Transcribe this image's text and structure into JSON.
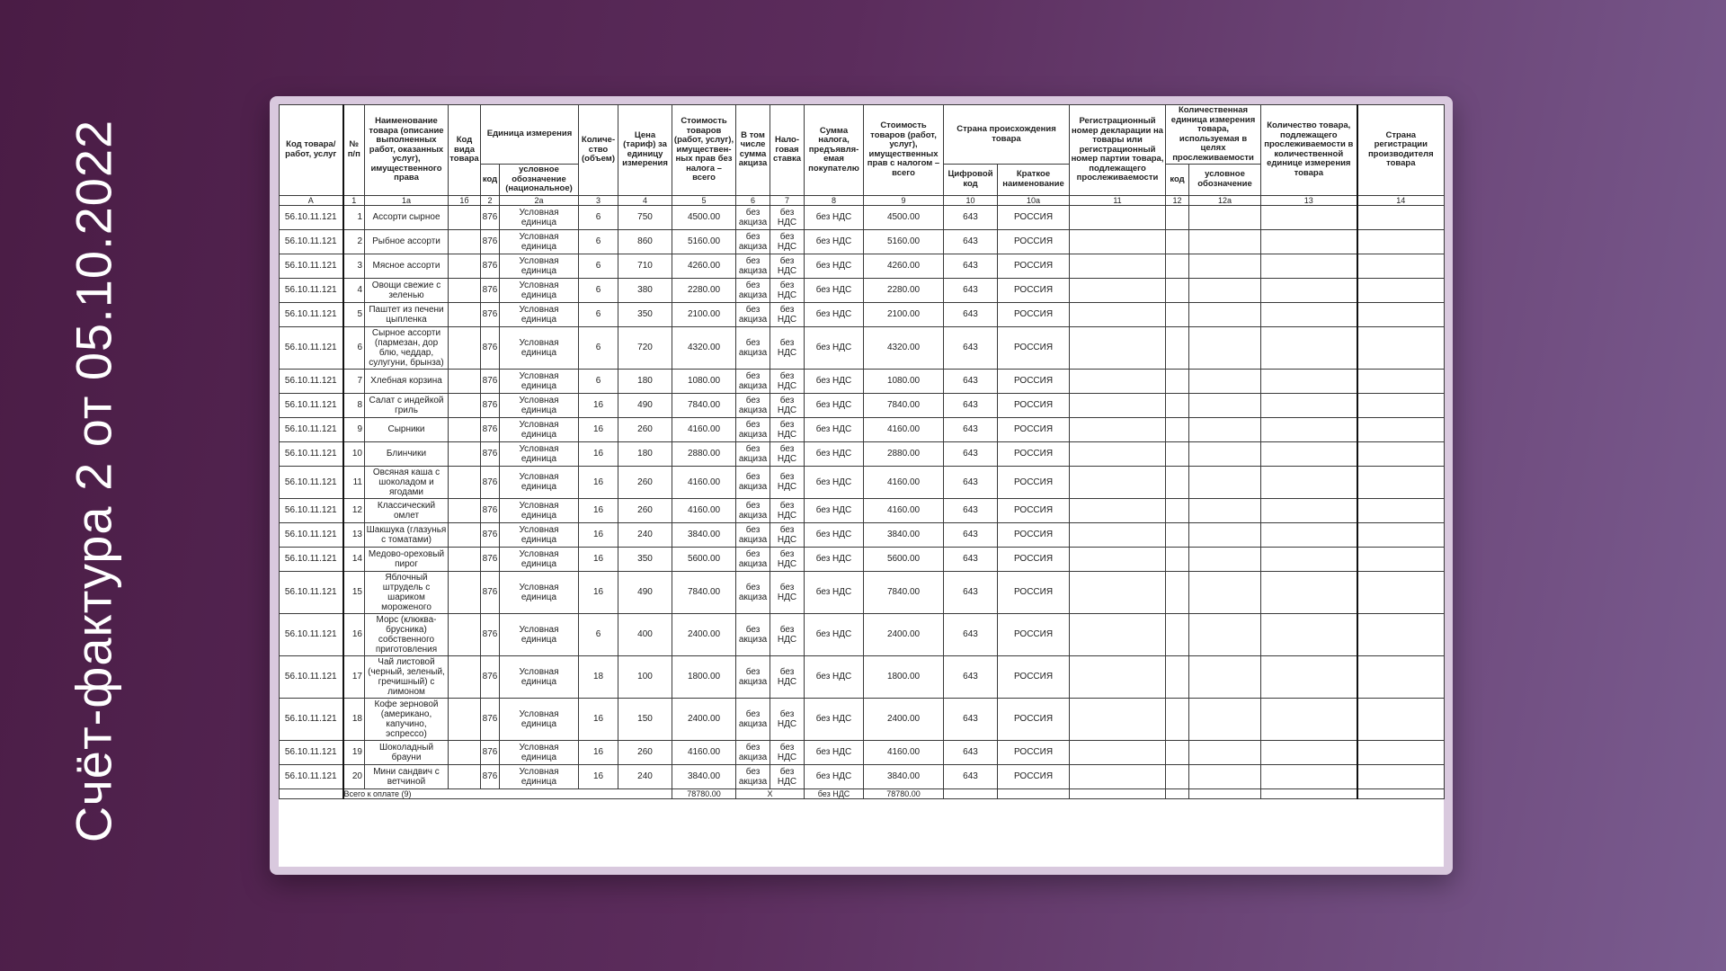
{
  "title": "Счёт-фактура 2 от 05.10.2022",
  "table": {
    "header": [
      "Код товара/ работ, услуг",
      "№ п/п",
      "Наименование товара (описание выполненных работ, оказанных услуг), имущественного права",
      "Код вида товара",
      "Единица измерения",
      "Количе-ство (объем)",
      "Цена (тариф) за единицу измерения",
      "Стоимость товаров (работ, услуг), имуществен-ных прав без налога – всего",
      "В том числе сумма акциза",
      "Нало-говая ставка",
      "Сумма налога, предъявля-емая покупателю",
      "Стоимость товаров (работ, услуг), имущественных прав с налогом – всего",
      "Страна происхождения товара",
      "Регистрационный номер декларации на товары или регистрационный номер партии товара, подлежащего прослеживаемости",
      "Количественная единица измерения товара, используемая в целях прослеживаемости",
      "Количество товара, подлежащего прослеживаемости в количественной единице измерения товара",
      "Страна регистрации производителя товара"
    ],
    "subheader": [
      "код",
      "условное обозначение (национальное)",
      "Цифровой код",
      "Краткое наименование",
      "код",
      "условное обозначение"
    ],
    "column_numbers": [
      "А",
      "1",
      "1а",
      "1б",
      "2",
      "2а",
      "3",
      "4",
      "5",
      "6",
      "7",
      "8",
      "9",
      "10",
      "10а",
      "11",
      "12",
      "12а",
      "13",
      "14"
    ],
    "rows": [
      {
        "code": "56.10.11.121",
        "n": "1",
        "name": "Ассорти сырное",
        "unit_code": "876",
        "unit": "Условная единица",
        "qty": "6",
        "price": "750",
        "cost": "4500.00",
        "excise": "без акциза",
        "rate": "без НДС",
        "tax": "без НДС",
        "total": "4500.00",
        "country_code": "643",
        "country": "РОССИЯ"
      },
      {
        "code": "56.10.11.121",
        "n": "2",
        "name": "Рыбное ассорти",
        "unit_code": "876",
        "unit": "Условная единица",
        "qty": "6",
        "price": "860",
        "cost": "5160.00",
        "excise": "без акциза",
        "rate": "без НДС",
        "tax": "без НДС",
        "total": "5160.00",
        "country_code": "643",
        "country": "РОССИЯ"
      },
      {
        "code": "56.10.11.121",
        "n": "3",
        "name": "Мясное ассорти",
        "unit_code": "876",
        "unit": "Условная единица",
        "qty": "6",
        "price": "710",
        "cost": "4260.00",
        "excise": "без акциза",
        "rate": "без НДС",
        "tax": "без НДС",
        "total": "4260.00",
        "country_code": "643",
        "country": "РОССИЯ"
      },
      {
        "code": "56.10.11.121",
        "n": "4",
        "name": "Овощи свежие с зеленью",
        "unit_code": "876",
        "unit": "Условная единица",
        "qty": "6",
        "price": "380",
        "cost": "2280.00",
        "excise": "без акциза",
        "rate": "без НДС",
        "tax": "без НДС",
        "total": "2280.00",
        "country_code": "643",
        "country": "РОССИЯ"
      },
      {
        "code": "56.10.11.121",
        "n": "5",
        "name": "Паштет из печени цыпленка",
        "unit_code": "876",
        "unit": "Условная единица",
        "qty": "6",
        "price": "350",
        "cost": "2100.00",
        "excise": "без акциза",
        "rate": "без НДС",
        "tax": "без НДС",
        "total": "2100.00",
        "country_code": "643",
        "country": "РОССИЯ"
      },
      {
        "code": "56.10.11.121",
        "n": "6",
        "name": "Сырное ассорти (пармезан, дор блю, чеддар, сулугуни, брынза)",
        "unit_code": "876",
        "unit": "Условная единица",
        "qty": "6",
        "price": "720",
        "cost": "4320.00",
        "excise": "без акциза",
        "rate": "без НДС",
        "tax": "без НДС",
        "total": "4320.00",
        "country_code": "643",
        "country": "РОССИЯ"
      },
      {
        "code": "56.10.11.121",
        "n": "7",
        "name": "Хлебная корзина",
        "unit_code": "876",
        "unit": "Условная единица",
        "qty": "6",
        "price": "180",
        "cost": "1080.00",
        "excise": "без акциза",
        "rate": "без НДС",
        "tax": "без НДС",
        "total": "1080.00",
        "country_code": "643",
        "country": "РОССИЯ"
      },
      {
        "code": "56.10.11.121",
        "n": "8",
        "name": "Салат с индейкой гриль",
        "unit_code": "876",
        "unit": "Условная единица",
        "qty": "16",
        "price": "490",
        "cost": "7840.00",
        "excise": "без акциза",
        "rate": "без НДС",
        "tax": "без НДС",
        "total": "7840.00",
        "country_code": "643",
        "country": "РОССИЯ"
      },
      {
        "code": "56.10.11.121",
        "n": "9",
        "name": "Сырники",
        "unit_code": "876",
        "unit": "Условная единица",
        "qty": "16",
        "price": "260",
        "cost": "4160.00",
        "excise": "без акциза",
        "rate": "без НДС",
        "tax": "без НДС",
        "total": "4160.00",
        "country_code": "643",
        "country": "РОССИЯ"
      },
      {
        "code": "56.10.11.121",
        "n": "10",
        "name": "Блинчики",
        "unit_code": "876",
        "unit": "Условная единица",
        "qty": "16",
        "price": "180",
        "cost": "2880.00",
        "excise": "без акциза",
        "rate": "без НДС",
        "tax": "без НДС",
        "total": "2880.00",
        "country_code": "643",
        "country": "РОССИЯ"
      },
      {
        "code": "56.10.11.121",
        "n": "11",
        "name": "Овсяная каша с шоколадом и ягодами",
        "unit_code": "876",
        "unit": "Условная единица",
        "qty": "16",
        "price": "260",
        "cost": "4160.00",
        "excise": "без акциза",
        "rate": "без НДС",
        "tax": "без НДС",
        "total": "4160.00",
        "country_code": "643",
        "country": "РОССИЯ"
      },
      {
        "code": "56.10.11.121",
        "n": "12",
        "name": "Классический омлет",
        "unit_code": "876",
        "unit": "Условная единица",
        "qty": "16",
        "price": "260",
        "cost": "4160.00",
        "excise": "без акциза",
        "rate": "без НДС",
        "tax": "без НДС",
        "total": "4160.00",
        "country_code": "643",
        "country": "РОССИЯ"
      },
      {
        "code": "56.10.11.121",
        "n": "13",
        "name": "Шакшука (глазунья с томатами)",
        "unit_code": "876",
        "unit": "Условная единица",
        "qty": "16",
        "price": "240",
        "cost": "3840.00",
        "excise": "без акциза",
        "rate": "без НДС",
        "tax": "без НДС",
        "total": "3840.00",
        "country_code": "643",
        "country": "РОССИЯ"
      },
      {
        "code": "56.10.11.121",
        "n": "14",
        "name": "Медово-ореховый пирог",
        "unit_code": "876",
        "unit": "Условная единица",
        "qty": "16",
        "price": "350",
        "cost": "5600.00",
        "excise": "без акциза",
        "rate": "без НДС",
        "tax": "без НДС",
        "total": "5600.00",
        "country_code": "643",
        "country": "РОССИЯ"
      },
      {
        "code": "56.10.11.121",
        "n": "15",
        "name": "Яблочный штрудель с шариком мороженого",
        "unit_code": "876",
        "unit": "Условная единица",
        "qty": "16",
        "price": "490",
        "cost": "7840.00",
        "excise": "без акциза",
        "rate": "без НДС",
        "tax": "без НДС",
        "total": "7840.00",
        "country_code": "643",
        "country": "РОССИЯ"
      },
      {
        "code": "56.10.11.121",
        "n": "16",
        "name": "Морс (клюква-брусника) собственного приготовления",
        "unit_code": "876",
        "unit": "Условная единица",
        "qty": "6",
        "price": "400",
        "cost": "2400.00",
        "excise": "без акциза",
        "rate": "без НДС",
        "tax": "без НДС",
        "total": "2400.00",
        "country_code": "643",
        "country": "РОССИЯ"
      },
      {
        "code": "56.10.11.121",
        "n": "17",
        "name": "Чай листовой (черный, зеленый, гречишный) с лимоном",
        "unit_code": "876",
        "unit": "Условная единица",
        "qty": "18",
        "price": "100",
        "cost": "1800.00",
        "excise": "без акциза",
        "rate": "без НДС",
        "tax": "без НДС",
        "total": "1800.00",
        "country_code": "643",
        "country": "РОССИЯ"
      },
      {
        "code": "56.10.11.121",
        "n": "18",
        "name": "Кофе зерновой (американо, капучино, эспрессо)",
        "unit_code": "876",
        "unit": "Условная единица",
        "qty": "16",
        "price": "150",
        "cost": "2400.00",
        "excise": "без акциза",
        "rate": "без НДС",
        "tax": "без НДС",
        "total": "2400.00",
        "country_code": "643",
        "country": "РОССИЯ"
      },
      {
        "code": "56.10.11.121",
        "n": "19",
        "name": "Шоколадный брауни",
        "unit_code": "876",
        "unit": "Условная единица",
        "qty": "16",
        "price": "260",
        "cost": "4160.00",
        "excise": "без акциза",
        "rate": "без НДС",
        "tax": "без НДС",
        "total": "4160.00",
        "country_code": "643",
        "country": "РОССИЯ"
      },
      {
        "code": "56.10.11.121",
        "n": "20",
        "name": "Мини сандвич с ветчиной",
        "unit_code": "876",
        "unit": "Условная единица",
        "qty": "16",
        "price": "240",
        "cost": "3840.00",
        "excise": "без акциза",
        "rate": "без НДС",
        "tax": "без НДС",
        "total": "3840.00",
        "country_code": "643",
        "country": "РОССИЯ"
      }
    ],
    "total": {
      "label": "Всего к оплате (9)",
      "cost": "78780.00",
      "excise": "X",
      "tax": "без НДС",
      "total": "78780.00"
    }
  }
}
